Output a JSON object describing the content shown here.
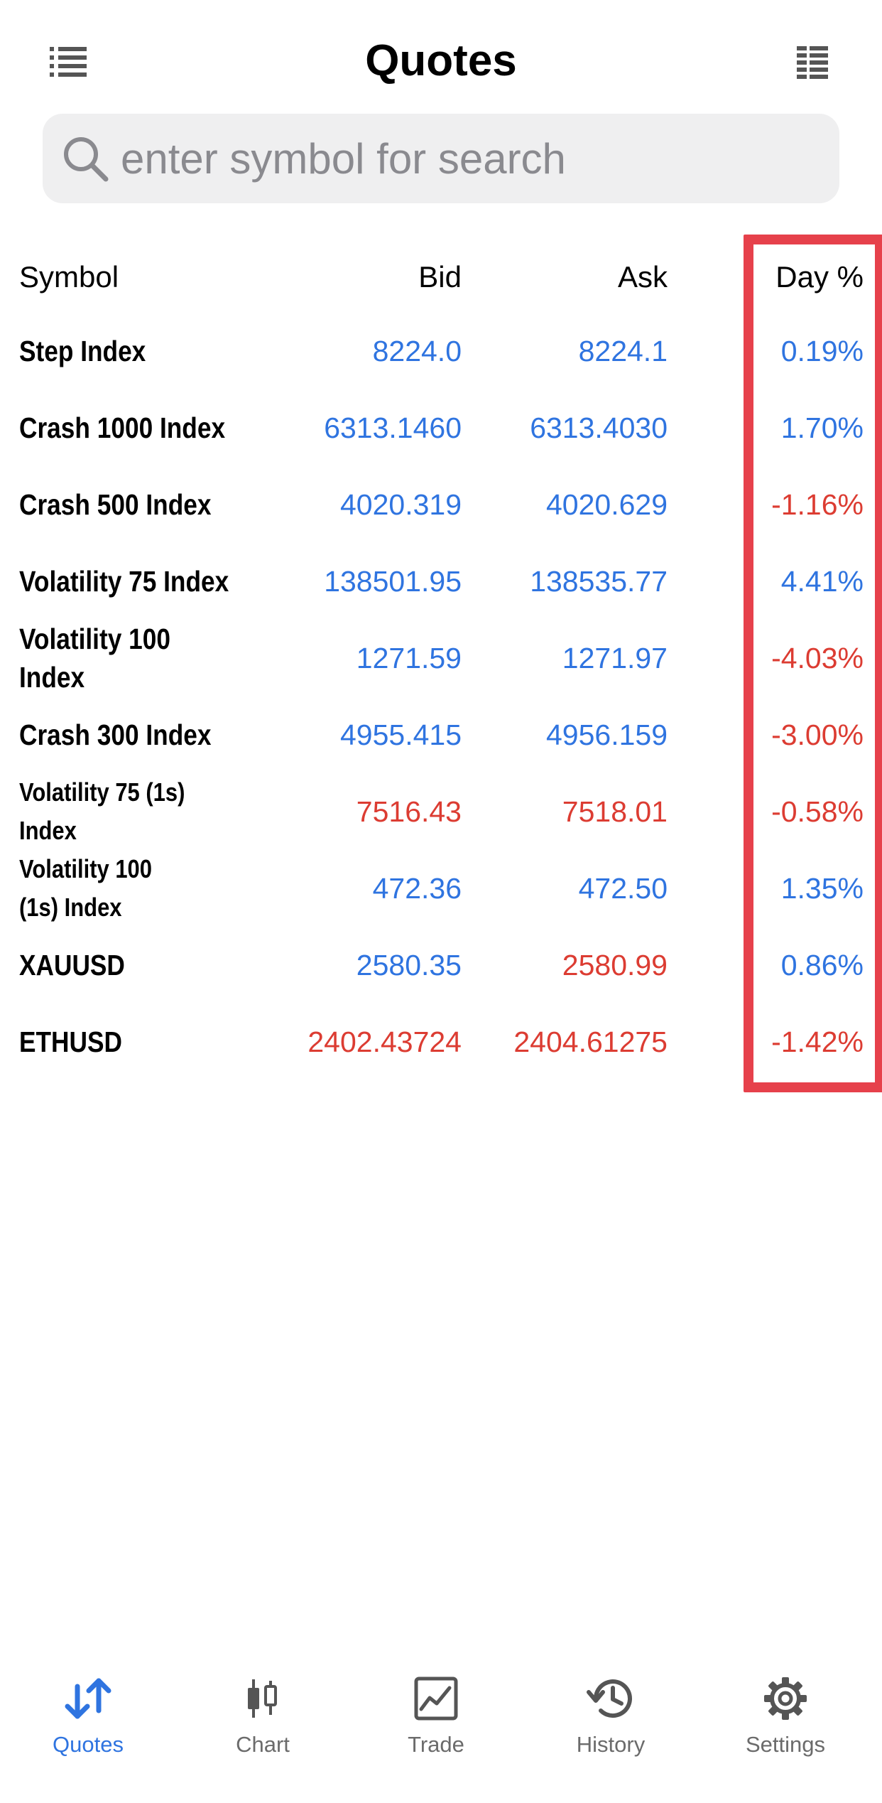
{
  "header": {
    "title": "Quotes",
    "left_icon": "list-icon",
    "right_icon": "grid-list-icon"
  },
  "search": {
    "placeholder": "enter symbol for search",
    "icon": "search-icon"
  },
  "columns": {
    "symbol": "Symbol",
    "bid": "Bid",
    "ask": "Ask",
    "day": "Day %"
  },
  "colors": {
    "up": "#2f74e0",
    "down": "#dc3c32",
    "highlight": "#e6414b"
  },
  "quotes": [
    {
      "symbol": "Step Index",
      "bid": "8224.0",
      "ask": "8224.1",
      "day": "0.19%",
      "bid_dir": "up",
      "ask_dir": "up",
      "day_dir": "up"
    },
    {
      "symbol": "Crash 1000 Index",
      "bid": "6313.1460",
      "ask": "6313.4030",
      "day": "1.70%",
      "bid_dir": "up",
      "ask_dir": "up",
      "day_dir": "up"
    },
    {
      "symbol": "Crash 500 Index",
      "bid": "4020.319",
      "ask": "4020.629",
      "day": "-1.16%",
      "bid_dir": "up",
      "ask_dir": "up",
      "day_dir": "down"
    },
    {
      "symbol": "Volatility 75 Index",
      "bid": "138501.95",
      "ask": "138535.77",
      "day": "4.41%",
      "bid_dir": "up",
      "ask_dir": "up",
      "day_dir": "up"
    },
    {
      "symbol": "Volatility 100 Index",
      "bid": "1271.59",
      "ask": "1271.97",
      "day": "-4.03%",
      "bid_dir": "up",
      "ask_dir": "up",
      "day_dir": "down"
    },
    {
      "symbol": "Crash 300 Index",
      "bid": "4955.415",
      "ask": "4956.159",
      "day": "-3.00%",
      "bid_dir": "up",
      "ask_dir": "up",
      "day_dir": "down"
    },
    {
      "symbol": "Volatility 75 (1s) Index",
      "bid": "7516.43",
      "ask": "7518.01",
      "day": "-0.58%",
      "bid_dir": "down",
      "ask_dir": "down",
      "day_dir": "down"
    },
    {
      "symbol": "Volatility 100 (1s) Index",
      "bid": "472.36",
      "ask": "472.50",
      "day": "1.35%",
      "bid_dir": "up",
      "ask_dir": "up",
      "day_dir": "up"
    },
    {
      "symbol": "XAUUSD",
      "bid": "2580.35",
      "ask": "2580.99",
      "day": "0.86%",
      "bid_dir": "up",
      "ask_dir": "down",
      "day_dir": "up"
    },
    {
      "symbol": "ETHUSD",
      "bid": "2402.43724",
      "ask": "2404.61275",
      "day": "-1.42%",
      "bid_dir": "down",
      "ask_dir": "down",
      "day_dir": "down"
    }
  ],
  "tabs": [
    {
      "label": "Quotes",
      "icon": "quotes-arrows-icon",
      "active": true
    },
    {
      "label": "Chart",
      "icon": "candlestick-icon",
      "active": false
    },
    {
      "label": "Trade",
      "icon": "trade-chart-icon",
      "active": false
    },
    {
      "label": "History",
      "icon": "history-icon",
      "active": false
    },
    {
      "label": "Settings",
      "icon": "gear-icon",
      "active": false
    }
  ]
}
